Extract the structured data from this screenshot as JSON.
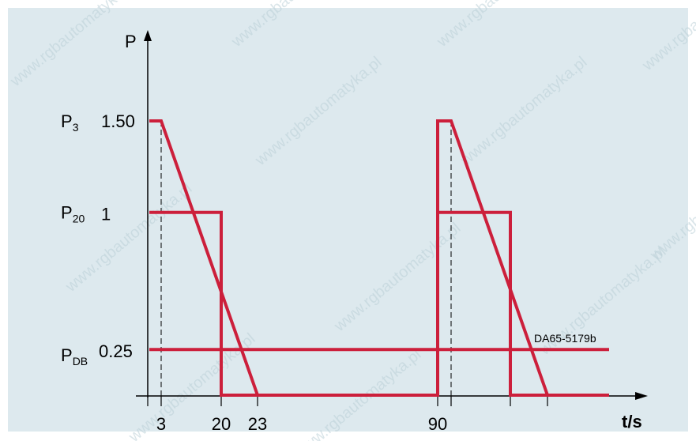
{
  "chart_data": {
    "type": "line",
    "y_axis_label": "P",
    "x_axis_label": "t/s",
    "y_levels": [
      {
        "symbol": "P",
        "subscript": "3",
        "value_label": "1.50",
        "value": 1.5
      },
      {
        "symbol": "P",
        "subscript": "20",
        "value_label": "1",
        "value": 1.0
      },
      {
        "symbol": "P",
        "subscript": "DB",
        "value_label": "0.25",
        "value": 0.25
      }
    ],
    "x_tick_labels": [
      "3",
      "20",
      "23",
      "90"
    ],
    "x_ticks": [
      0,
      3,
      20,
      23,
      90,
      93,
      110,
      113
    ],
    "xlim": [
      0,
      140
    ],
    "ylim": [
      0,
      1.5
    ],
    "series": [
      {
        "color": "#cc1f3b",
        "points": [
          [
            0,
            1.5
          ],
          [
            3,
            1.5
          ],
          [
            23,
            0
          ],
          [
            90,
            0
          ],
          [
            90,
            1.5
          ],
          [
            93,
            1.5
          ],
          [
            113,
            0
          ],
          [
            140,
            0
          ]
        ]
      },
      {
        "color": "#cc1f3b",
        "points": [
          [
            0,
            1.0
          ],
          [
            20,
            1.0
          ],
          [
            20,
            0
          ],
          [
            90,
            0
          ],
          [
            90,
            1.0
          ],
          [
            110,
            1.0
          ],
          [
            110,
            0
          ],
          [
            140,
            0
          ]
        ]
      },
      {
        "color": "#cc1f3b",
        "points": [
          [
            0,
            0.25
          ],
          [
            140,
            0.25
          ]
        ]
      }
    ],
    "dashed_guides_x": [
      3,
      93
    ],
    "annotation": "DA65-5179b",
    "watermark": "www.rgbautomatyka.pl"
  }
}
